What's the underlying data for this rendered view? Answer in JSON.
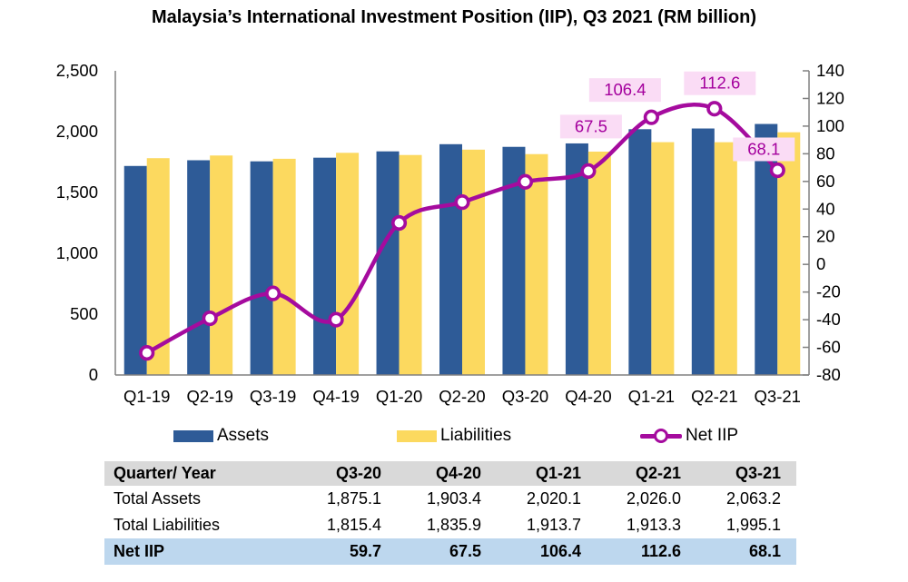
{
  "title": "Malaysia’s International Investment Position (IIP), Q3 2021 (RM billion)",
  "colors": {
    "assets_bar": "#2E5B97",
    "liabilities_bar": "#FCD95F",
    "net_line": "#A50B9E",
    "marker_fill": "#FFFFFF",
    "point_label_bg": "#FADCF5",
    "point_label_text": "#A4009D",
    "axis_line": "#808080",
    "table_header_bg": "#D9D9D9",
    "table_net_row_bg": "#BDD7EE"
  },
  "chart_data": {
    "type": "bar",
    "subtype": "grouped bars with line on secondary axis",
    "title": "Malaysia’s International Investment Position (IIP), Q3 2021 (RM billion)",
    "categories": [
      "Q1-19",
      "Q2-19",
      "Q3-19",
      "Q4-19",
      "Q1-20",
      "Q2-20",
      "Q3-20",
      "Q4-20",
      "Q1-21",
      "Q2-21",
      "Q3-21"
    ],
    "series": [
      {
        "name": "Assets",
        "type": "bar",
        "axis": "left",
        "values": [
          1718,
          1765,
          1756,
          1786,
          1838,
          1897,
          1875.1,
          1903.4,
          2020.1,
          2026.0,
          2063.2
        ]
      },
      {
        "name": "Liabilities",
        "type": "bar",
        "axis": "left",
        "values": [
          1782,
          1804,
          1777,
          1826,
          1808,
          1852,
          1815.4,
          1835.9,
          1913.7,
          1913.3,
          1995.1
        ]
      },
      {
        "name": "Net IIP",
        "type": "line",
        "axis": "right",
        "values": [
          -64,
          -39,
          -21,
          -40,
          30,
          45,
          59.7,
          67.5,
          106.4,
          112.6,
          68.1
        ]
      }
    ],
    "left_axis": {
      "min": 0,
      "max": 2500,
      "step": 500,
      "tick_labels": [
        "0",
        "500",
        "1,000",
        "1,500",
        "2,000",
        "2,500"
      ]
    },
    "right_axis": {
      "min": -80,
      "max": 140,
      "step": 20,
      "tick_labels": [
        "-80",
        "-60",
        "-40",
        "-20",
        "0",
        "20",
        "40",
        "60",
        "80",
        "100",
        "120",
        "140"
      ]
    },
    "point_labels": [
      {
        "category": "Q4-20",
        "text": "67.5"
      },
      {
        "category": "Q1-21",
        "text": "106.4"
      },
      {
        "category": "Q2-21",
        "text": "112.6"
      },
      {
        "category": "Q3-21",
        "text": "68.1"
      }
    ],
    "grid": "off",
    "legend_position": "bottom",
    "legend": [
      "Assets",
      "Liabilities",
      "Net IIP"
    ]
  },
  "table": {
    "header": [
      "Quarter/ Year",
      "Q3-20",
      "Q4-20",
      "Q1-21",
      "Q2-21",
      "Q3-21"
    ],
    "rows": [
      {
        "label": "Total Assets",
        "values": [
          "1,875.1",
          "1,903.4",
          "2,020.1",
          "2,026.0",
          "2,063.2"
        ]
      },
      {
        "label": "Total Liabilities",
        "values": [
          "1,815.4",
          "1,835.9",
          "1,913.7",
          "1,913.3",
          "1,995.1"
        ]
      },
      {
        "label": "Net IIP",
        "values": [
          "59.7",
          "67.5",
          "106.4",
          "112.6",
          "68.1"
        ]
      }
    ]
  }
}
